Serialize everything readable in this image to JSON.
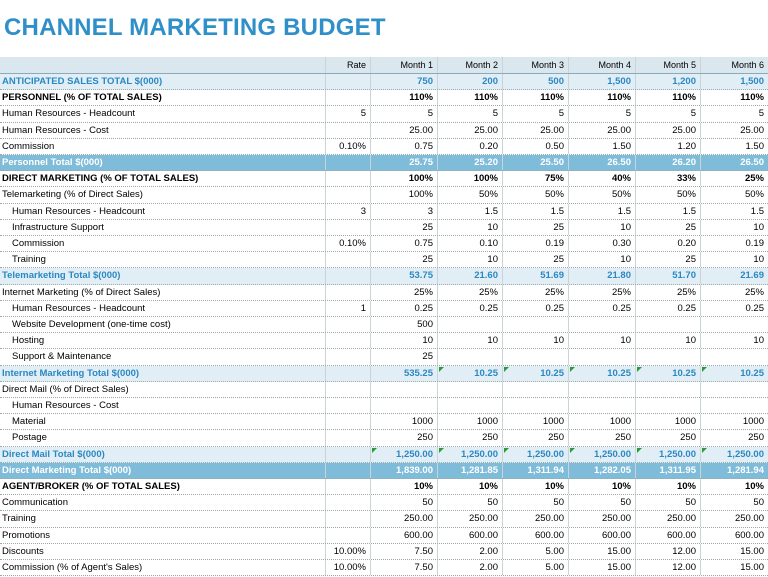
{
  "title": "CHANNEL MARKETING BUDGET",
  "table": {
    "header": {
      "rate": "Rate",
      "months": [
        "Month 1",
        "Month 2",
        "Month 3",
        "Month 4",
        "Month 5",
        "Month 6"
      ]
    },
    "rows": [
      {
        "label": "ANTICIPATED SALES TOTAL $(000)",
        "cells": [
          "750",
          "200",
          "500",
          "1,500",
          "1,200",
          "1,500"
        ]
      },
      {
        "label": "PERSONNEL (% OF TOTAL SALES)",
        "cells": [
          "110%",
          "110%",
          "110%",
          "110%",
          "110%",
          "110%"
        ]
      },
      {
        "label": "Human Resources - Headcount",
        "rate": "5",
        "cells": [
          "5",
          "5",
          "5",
          "5",
          "5",
          "5"
        ]
      },
      {
        "label": "Human Resources - Cost",
        "cells": [
          "25.00",
          "25.00",
          "25.00",
          "25.00",
          "25.00",
          "25.00"
        ]
      },
      {
        "label": "Commission",
        "rate": "0.10%",
        "cells": [
          "0.75",
          "0.20",
          "0.50",
          "1.50",
          "1.20",
          "1.50"
        ]
      },
      {
        "label": "Personnel Total $(000)",
        "cells": [
          "25.75",
          "25.20",
          "25.50",
          "26.50",
          "26.20",
          "26.50"
        ]
      },
      {
        "label": "DIRECT MARKETING (% OF TOTAL SALES)",
        "cells": [
          "100%",
          "100%",
          "75%",
          "40%",
          "33%",
          "25%"
        ]
      },
      {
        "label": "Telemarketing (% of Direct Sales)",
        "cells": [
          "100%",
          "50%",
          "50%",
          "50%",
          "50%",
          "50%"
        ]
      },
      {
        "label": "Human Resources - Headcount",
        "rate": "3",
        "cells": [
          "3",
          "1.5",
          "1.5",
          "1.5",
          "1.5",
          "1.5"
        ]
      },
      {
        "label": "Infrastructure Support",
        "cells": [
          "25",
          "10",
          "25",
          "10",
          "25",
          "10"
        ]
      },
      {
        "label": "Commission",
        "rate": "0.10%",
        "cells": [
          "0.75",
          "0.10",
          "0.19",
          "0.30",
          "0.20",
          "0.19"
        ]
      },
      {
        "label": "Training",
        "cells": [
          "25",
          "10",
          "25",
          "10",
          "25",
          "10"
        ]
      },
      {
        "label": "Telemarketing Total $(000)",
        "cells": [
          "53.75",
          "21.60",
          "51.69",
          "21.80",
          "51.70",
          "21.69"
        ]
      },
      {
        "label": "Internet Marketing (% of Direct Sales)",
        "cells": [
          "25%",
          "25%",
          "25%",
          "25%",
          "25%",
          "25%"
        ]
      },
      {
        "label": "Human Resources - Headcount",
        "rate": "1",
        "cells": [
          "0.25",
          "0.25",
          "0.25",
          "0.25",
          "0.25",
          "0.25"
        ]
      },
      {
        "label": "Website Development (one-time cost)",
        "cells": [
          "500",
          null,
          null,
          null,
          null,
          null
        ]
      },
      {
        "label": "Hosting",
        "cells": [
          "10",
          "10",
          "10",
          "10",
          "10",
          "10"
        ]
      },
      {
        "label": "Support & Maintenance",
        "cells": [
          "25",
          null,
          null,
          null,
          null,
          null
        ]
      },
      {
        "label": "Internet Marketing Total $(000)",
        "cells": [
          "535.25",
          "10.25",
          "10.25",
          "10.25",
          "10.25",
          "10.25"
        ]
      },
      {
        "label": "Direct Mail (% of Direct Sales)",
        "cells": [
          null,
          null,
          null,
          null,
          null,
          null
        ]
      },
      {
        "label": "Human Resources - Cost",
        "cells": [
          null,
          null,
          null,
          null,
          null,
          null
        ]
      },
      {
        "label": "Material",
        "cells": [
          "1000",
          "1000",
          "1000",
          "1000",
          "1000",
          "1000"
        ]
      },
      {
        "label": "Postage",
        "cells": [
          "250",
          "250",
          "250",
          "250",
          "250",
          "250"
        ]
      },
      {
        "label": "Direct Mail Total $(000)",
        "cells": [
          "1,250.00",
          "1,250.00",
          "1,250.00",
          "1,250.00",
          "1,250.00",
          "1,250.00"
        ]
      },
      {
        "label": "Direct Marketing Total $(000)",
        "cells": [
          "1,839.00",
          "1,281.85",
          "1,311.94",
          "1,282.05",
          "1,311.95",
          "1,281.94"
        ]
      },
      {
        "label": "AGENT/BROKER (% OF TOTAL SALES)",
        "cells": [
          "10%",
          "10%",
          "10%",
          "10%",
          "10%",
          "10%"
        ]
      },
      {
        "label": "Communication",
        "cells": [
          "50",
          "50",
          "50",
          "50",
          "50",
          "50"
        ]
      },
      {
        "label": "Training",
        "cells": [
          "250.00",
          "250.00",
          "250.00",
          "250.00",
          "250.00",
          "250.00"
        ]
      },
      {
        "label": "Promotions",
        "cells": [
          "600.00",
          "600.00",
          "600.00",
          "600.00",
          "600.00",
          "600.00"
        ]
      },
      {
        "label": "Discounts",
        "rate": "10.00%",
        "cells": [
          "7.50",
          "2.00",
          "5.00",
          "15.00",
          "12.00",
          "15.00"
        ]
      },
      {
        "label": "Commission (% of Agent's Sales)",
        "rate": "10.00%",
        "cells": [
          "7.50",
          "2.00",
          "5.00",
          "15.00",
          "12.00",
          "15.00"
        ]
      }
    ]
  }
}
